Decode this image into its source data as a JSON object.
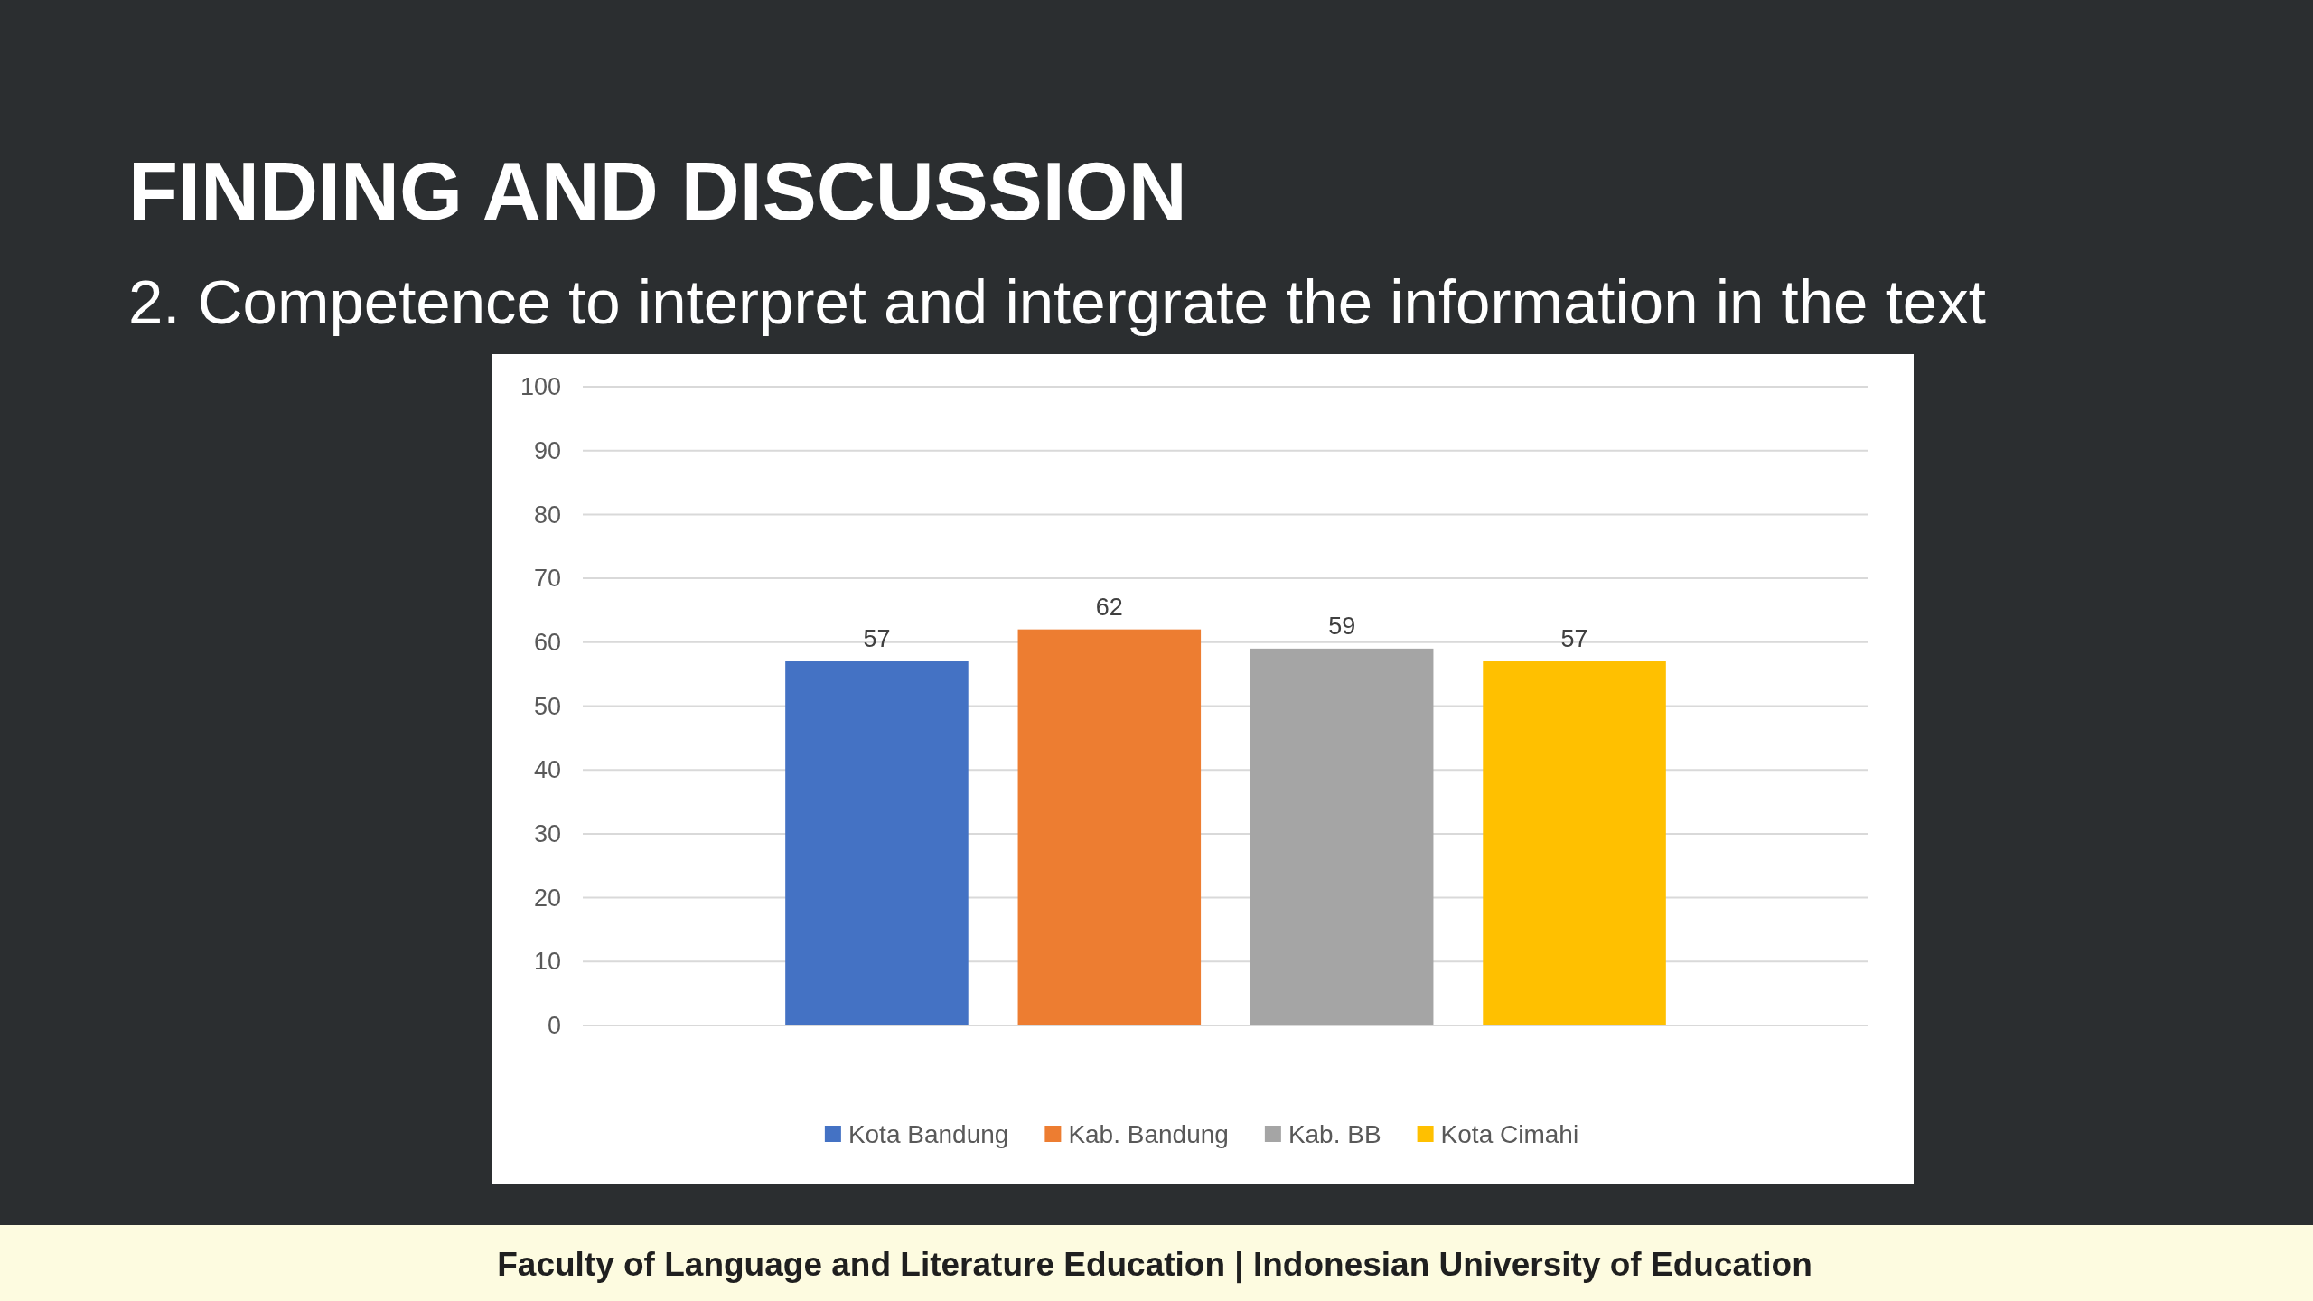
{
  "chart_data": {
    "type": "bar",
    "title": "FINDING AND DISCUSSION",
    "subtitle": "2. Competence to interpret and intergrate the information in the text",
    "categories": [
      null
    ],
    "series": [
      {
        "name": "Kota Bandung",
        "color": "#4472c4",
        "values": [
          57
        ]
      },
      {
        "name": "Kab. Bandung",
        "color": "#ed7d31",
        "values": [
          62
        ]
      },
      {
        "name": "Kab. BB",
        "color": "#a5a5a5",
        "values": [
          59
        ]
      },
      {
        "name": "Kota Cimahi",
        "color": "#ffc000",
        "values": [
          57
        ]
      }
    ],
    "ylim": [
      0,
      100
    ],
    "yticks": [
      0,
      10,
      20,
      30,
      40,
      50,
      60,
      70,
      80,
      90,
      100
    ],
    "grid": "y",
    "legend": "bottom",
    "data_labels": true,
    "annotations": [
      "Faculty of Language and Literature Education | Indonesian University of Education"
    ]
  }
}
